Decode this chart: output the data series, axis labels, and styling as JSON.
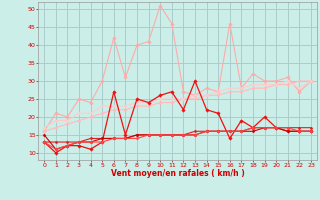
{
  "xlabel": "Vent moyen/en rafales ( km/h )",
  "xlim": [
    -0.5,
    23.5
  ],
  "ylim": [
    8,
    52
  ],
  "yticks": [
    10,
    15,
    20,
    25,
    30,
    35,
    40,
    45,
    50
  ],
  "xticks": [
    0,
    1,
    2,
    3,
    4,
    5,
    6,
    7,
    8,
    9,
    10,
    11,
    12,
    13,
    14,
    15,
    16,
    17,
    18,
    19,
    20,
    21,
    22,
    23
  ],
  "bg_color": "#cceee8",
  "grid_color": "#aacccc",
  "series": [
    {
      "name": "rafales_light",
      "color": "#ffaaaa",
      "lw": 0.8,
      "marker": "D",
      "ms": 1.8,
      "x": [
        0,
        1,
        2,
        3,
        4,
        5,
        6,
        7,
        8,
        9,
        10,
        11,
        12,
        13,
        14,
        15,
        16,
        17,
        18,
        19,
        20,
        21,
        22,
        23
      ],
      "y": [
        16,
        21,
        20,
        25,
        24,
        30,
        42,
        31,
        40,
        41,
        51,
        46,
        27,
        26,
        28,
        27,
        46,
        28,
        32,
        30,
        30,
        31,
        27,
        30
      ]
    },
    {
      "name": "moyen_light_trend",
      "color": "#ffbbbb",
      "lw": 0.8,
      "marker": "D",
      "ms": 1.5,
      "x": [
        0,
        1,
        2,
        3,
        4,
        5,
        6,
        7,
        8,
        9,
        10,
        11,
        12,
        13,
        14,
        15,
        16,
        17,
        18,
        19,
        20,
        21,
        22,
        23
      ],
      "y": [
        16,
        17,
        18,
        19,
        20,
        21,
        22,
        22,
        23,
        23,
        24,
        24,
        25,
        25,
        26,
        26,
        27,
        27,
        28,
        28,
        29,
        29,
        30,
        30
      ]
    },
    {
      "name": "moyen_light",
      "color": "#ffcccc",
      "lw": 0.8,
      "marker": "D",
      "ms": 1.5,
      "x": [
        0,
        1,
        2,
        3,
        4,
        5,
        6,
        7,
        8,
        9,
        10,
        11,
        12,
        13,
        14,
        15,
        16,
        17,
        18,
        19,
        20,
        21,
        22,
        23
      ],
      "y": [
        17,
        19,
        19,
        21,
        21,
        23,
        23,
        23,
        24,
        24,
        25,
        25,
        25,
        26,
        26,
        27,
        28,
        28,
        29,
        29,
        29,
        30,
        28,
        30
      ]
    },
    {
      "name": "rafales_dark",
      "color": "#ee1111",
      "lw": 0.9,
      "marker": "D",
      "ms": 1.8,
      "x": [
        0,
        1,
        2,
        3,
        4,
        5,
        6,
        7,
        8,
        9,
        10,
        11,
        12,
        13,
        14,
        15,
        16,
        17,
        18,
        19,
        20,
        21,
        22,
        23
      ],
      "y": [
        13,
        10,
        12,
        12,
        11,
        13,
        27,
        15,
        25,
        24,
        26,
        27,
        22,
        30,
        22,
        21,
        14,
        19,
        17,
        20,
        17,
        16,
        16,
        16
      ]
    },
    {
      "name": "moyen_dark_trend",
      "color": "#dd2222",
      "lw": 0.8,
      "marker": "D",
      "ms": 1.5,
      "x": [
        0,
        1,
        2,
        3,
        4,
        5,
        6,
        7,
        8,
        9,
        10,
        11,
        12,
        13,
        14,
        15,
        16,
        17,
        18,
        19,
        20,
        21,
        22,
        23
      ],
      "y": [
        13,
        13,
        13,
        13,
        14,
        14,
        14,
        14,
        15,
        15,
        15,
        15,
        15,
        16,
        16,
        16,
        16,
        16,
        17,
        17,
        17,
        17,
        17,
        17
      ]
    },
    {
      "name": "moyen_dark2",
      "color": "#cc0000",
      "lw": 0.8,
      "marker": "D",
      "ms": 1.5,
      "x": [
        0,
        1,
        2,
        3,
        4,
        5,
        6,
        7,
        8,
        9,
        10,
        11,
        12,
        13,
        14,
        15,
        16,
        17,
        18,
        19,
        20,
        21,
        22,
        23
      ],
      "y": [
        15,
        11,
        12,
        13,
        13,
        14,
        14,
        14,
        15,
        15,
        15,
        15,
        15,
        15,
        16,
        16,
        16,
        16,
        16,
        17,
        17,
        16,
        16,
        16
      ]
    },
    {
      "name": "moyen_dark3",
      "color": "#ff4444",
      "lw": 0.8,
      "marker": "D",
      "ms": 1.5,
      "x": [
        0,
        1,
        2,
        3,
        4,
        5,
        6,
        7,
        8,
        9,
        10,
        11,
        12,
        13,
        14,
        15,
        16,
        17,
        18,
        19,
        20,
        21,
        22,
        23
      ],
      "y": [
        13,
        11,
        12,
        13,
        13,
        13,
        14,
        14,
        14,
        15,
        15,
        15,
        15,
        15,
        16,
        16,
        16,
        16,
        17,
        17,
        17,
        17,
        16,
        16
      ]
    }
  ]
}
